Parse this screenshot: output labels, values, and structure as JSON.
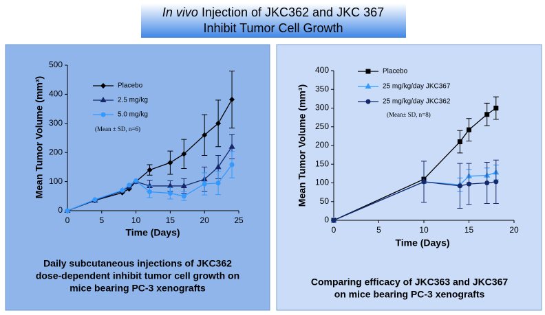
{
  "header": {
    "title_italic": "In vivo",
    "title_line1": "Injection of JKC362 and JKC 367",
    "title_line2": "Inhibit Tumor Cell Growth"
  },
  "chart_data": [
    {
      "type": "line",
      "x_label": "Time (Days)",
      "y_label": "Mean Tumor Volume (mm³)",
      "note": "(Mean ± SD, n=6)",
      "caption": [
        "Daily subcutaneous injections of  JKC362",
        "dose-dependent inhibit tumor cell growth  on",
        "mice bearing PC-3 xenografts"
      ],
      "x": [
        0,
        4,
        8,
        9,
        10,
        12,
        15,
        17,
        20,
        22,
        24
      ],
      "xlim": [
        0,
        25
      ],
      "xticks": [
        0,
        5,
        10,
        15,
        20,
        25
      ],
      "ylim": [
        0,
        500
      ],
      "yticks": [
        0,
        100,
        200,
        300,
        400,
        500
      ],
      "series": [
        {
          "name": "Placebo",
          "color": "#000000",
          "marker": "diamond",
          "values": [
            0,
            35,
            62,
            75,
            100,
            140,
            165,
            195,
            260,
            300,
            382
          ],
          "errors": [
            null,
            null,
            null,
            null,
            null,
            18,
            40,
            50,
            70,
            80,
            98
          ]
        },
        {
          "name": "2.5 mg/kg",
          "color": "#14286b",
          "marker": "triangle",
          "values": [
            0,
            35,
            68,
            82,
            100,
            85,
            85,
            85,
            108,
            150,
            220
          ],
          "errors": [
            null,
            null,
            null,
            null,
            null,
            20,
            18,
            25,
            42,
            40,
            42
          ]
        },
        {
          "name": "5.0 mg/kg",
          "color": "#3399ff",
          "marker": "circle",
          "values": [
            0,
            38,
            70,
            88,
            103,
            65,
            60,
            50,
            92,
            95,
            158
          ],
          "errors": [
            null,
            null,
            null,
            null,
            null,
            20,
            20,
            15,
            38,
            40,
            45
          ]
        }
      ]
    },
    {
      "type": "line",
      "x_label": "Time (Days)",
      "y_label": "Mean Tumor Volume (mm³)",
      "note": "(Mean± SD, n=8)",
      "caption": [
        "Comparing efficacy of JKC363 and JKC367",
        "on mice bearing PC-3 xenografts"
      ],
      "x": [
        0,
        10,
        14,
        15,
        17,
        18
      ],
      "xlim": [
        0,
        20
      ],
      "xticks": [
        0,
        5,
        10,
        15,
        20
      ],
      "ylim": [
        0,
        400
      ],
      "yticks": [
        0,
        50,
        100,
        150,
        200,
        250,
        300,
        350,
        400
      ],
      "series": [
        {
          "name": "Placebo",
          "color": "#000000",
          "marker": "square",
          "values": [
            0,
            110,
            210,
            242,
            283,
            300
          ],
          "errors": [
            null,
            null,
            30,
            30,
            30,
            30
          ]
        },
        {
          "name": "25 mg/kg/day JKC367",
          "color": "#3399ff",
          "marker": "triangle",
          "values": [
            0,
            103,
            95,
            118,
            120,
            128
          ],
          "errors": [
            null,
            null,
            18,
            18,
            20,
            20
          ]
        },
        {
          "name": "25 mg/kg/day JKC362",
          "color": "#14286b",
          "marker": "circle",
          "values": [
            0,
            103,
            92,
            97,
            100,
            103
          ],
          "errors": [
            null,
            55,
            60,
            55,
            55,
            58
          ]
        }
      ]
    }
  ]
}
